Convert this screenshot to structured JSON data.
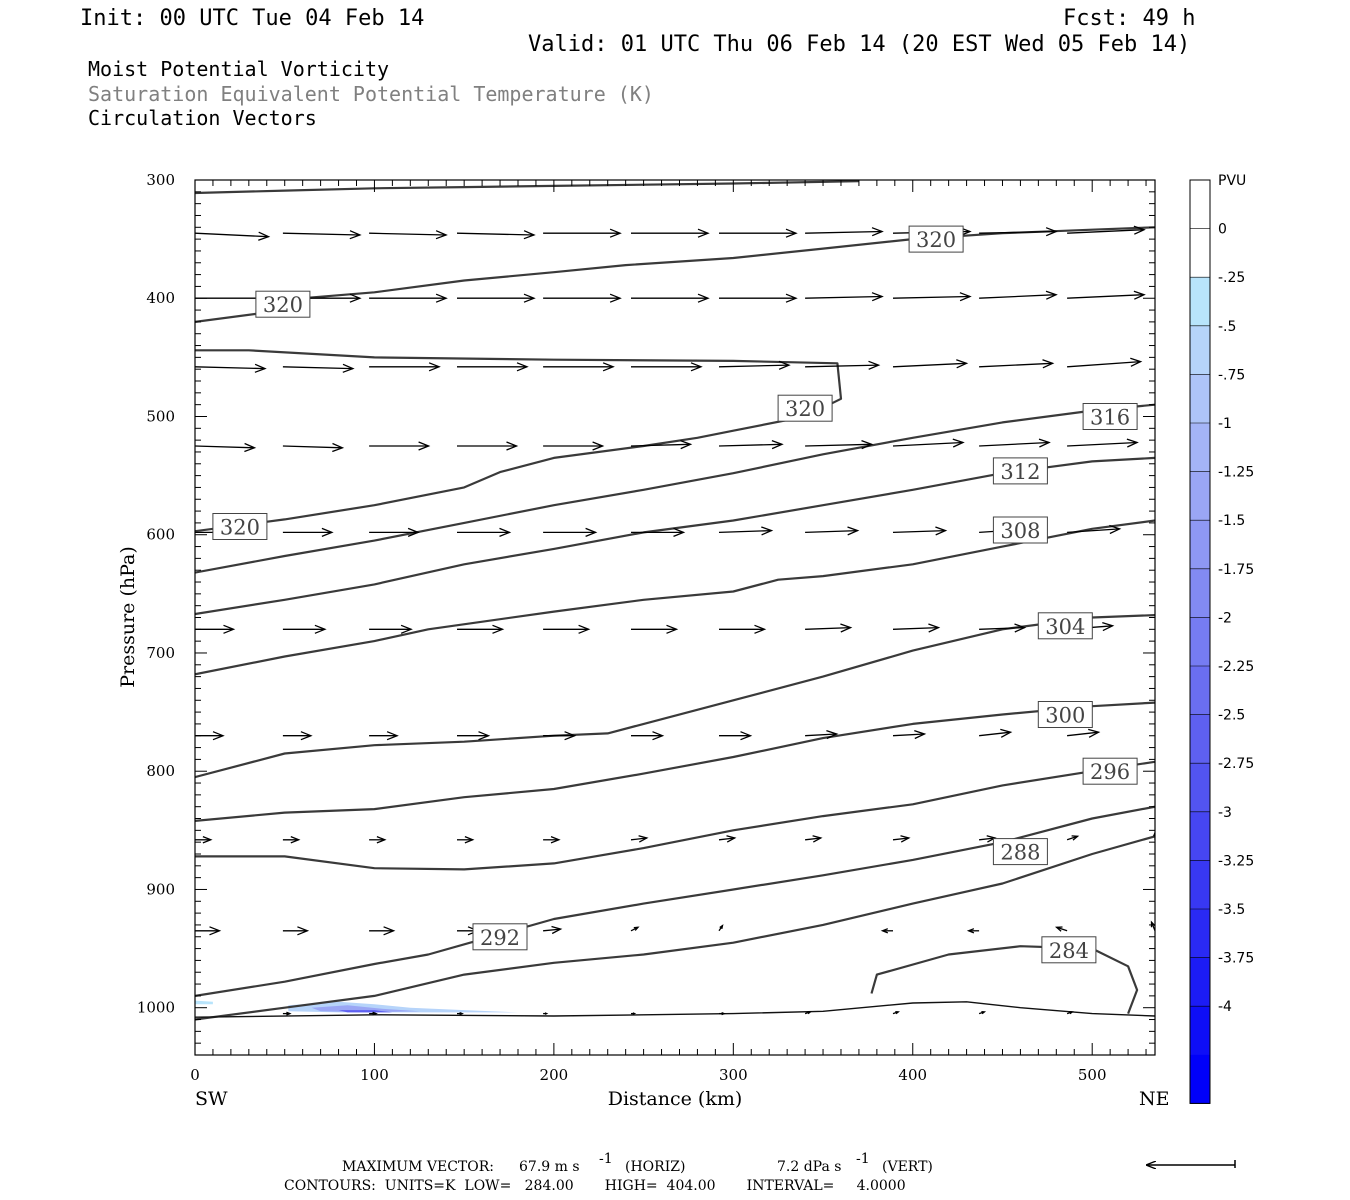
{
  "header": {
    "init": "Init: 00 UTC Tue 04 Feb 14",
    "fcst": "Fcst:   49 h",
    "valid": "Valid: 01 UTC Thu 06 Feb 14 (20 EST Wed 05 Feb 14)"
  },
  "fields": [
    {
      "text": "Moist Potential Vorticity",
      "color": "#000000"
    },
    {
      "text": "Saturation Equivalent Potential Temperature (K)",
      "color": "#808080"
    },
    {
      "text": "Circulation Vectors",
      "color": "#000000"
    }
  ],
  "chart_data": {
    "type": "line",
    "xlabel": "Distance (km)",
    "ylabel": "Pressure (hPa)",
    "xlim": [
      0,
      535
    ],
    "ylim": [
      1040,
      300
    ],
    "x_ticks": [
      0,
      100,
      200,
      300,
      400,
      500
    ],
    "y_ticks": [
      300,
      400,
      500,
      600,
      700,
      800,
      900,
      1000
    ],
    "x_end_labels": {
      "left": "SW",
      "right": "NE"
    },
    "isentropes": [
      {
        "name": "284",
        "points": [
          [
            377,
            988
          ],
          [
            380,
            972
          ],
          [
            420,
            955
          ],
          [
            460,
            948
          ],
          [
            500,
            950
          ],
          [
            520,
            965
          ],
          [
            525,
            985
          ],
          [
            520,
            1005
          ]
        ],
        "label_at": [
          487,
          951
        ]
      },
      {
        "name": "288",
        "points": [
          [
            0,
            1010
          ],
          [
            50,
            1000
          ],
          [
            100,
            990
          ],
          [
            150,
            972
          ],
          [
            200,
            962
          ],
          [
            250,
            955
          ],
          [
            300,
            945
          ],
          [
            350,
            930
          ],
          [
            400,
            912
          ],
          [
            450,
            895
          ],
          [
            500,
            870
          ],
          [
            535,
            855
          ]
        ],
        "label_at": [
          460,
          868
        ]
      },
      {
        "name": "292",
        "points": [
          [
            0,
            990
          ],
          [
            50,
            978
          ],
          [
            100,
            963
          ],
          [
            130,
            955
          ],
          [
            200,
            925
          ],
          [
            250,
            912
          ],
          [
            300,
            900
          ],
          [
            350,
            888
          ],
          [
            400,
            875
          ],
          [
            450,
            860
          ],
          [
            500,
            840
          ],
          [
            535,
            830
          ]
        ],
        "label_at": [
          170,
          940
        ]
      },
      {
        "name": "296",
        "points": [
          [
            0,
            872
          ],
          [
            50,
            872
          ],
          [
            100,
            882
          ],
          [
            150,
            883
          ],
          [
            200,
            878
          ],
          [
            250,
            865
          ],
          [
            300,
            850
          ],
          [
            350,
            838
          ],
          [
            400,
            828
          ],
          [
            450,
            812
          ],
          [
            500,
            800
          ],
          [
            535,
            792
          ]
        ],
        "label_at": [
          510,
          800
        ]
      },
      {
        "name": "300",
        "points": [
          [
            0,
            842
          ],
          [
            50,
            835
          ],
          [
            100,
            832
          ],
          [
            150,
            822
          ],
          [
            200,
            815
          ],
          [
            250,
            802
          ],
          [
            300,
            788
          ],
          [
            350,
            772
          ],
          [
            400,
            760
          ],
          [
            450,
            752
          ],
          [
            500,
            745
          ],
          [
            535,
            742
          ]
        ],
        "label_at": [
          485,
          752
        ]
      },
      {
        "name": "304",
        "points": [
          [
            0,
            805
          ],
          [
            50,
            785
          ],
          [
            100,
            778
          ],
          [
            150,
            775
          ],
          [
            200,
            770
          ],
          [
            230,
            768
          ],
          [
            300,
            740
          ],
          [
            350,
            720
          ],
          [
            400,
            698
          ],
          [
            450,
            680
          ],
          [
            500,
            670
          ],
          [
            535,
            668
          ]
        ],
        "label_at": [
          485,
          677
        ]
      },
      {
        "name": "308",
        "points": [
          [
            0,
            718
          ],
          [
            50,
            703
          ],
          [
            100,
            690
          ],
          [
            130,
            680
          ],
          [
            200,
            665
          ],
          [
            250,
            655
          ],
          [
            300,
            648
          ],
          [
            325,
            638
          ],
          [
            350,
            635
          ],
          [
            400,
            625
          ],
          [
            450,
            610
          ],
          [
            500,
            595
          ],
          [
            535,
            588
          ]
        ],
        "label_at": [
          460,
          596
        ]
      },
      {
        "name": "312",
        "points": [
          [
            0,
            667
          ],
          [
            50,
            655
          ],
          [
            100,
            642
          ],
          [
            150,
            625
          ],
          [
            200,
            612
          ],
          [
            250,
            598
          ],
          [
            300,
            588
          ],
          [
            350,
            575
          ],
          [
            400,
            562
          ],
          [
            450,
            548
          ],
          [
            500,
            538
          ],
          [
            535,
            535
          ]
        ],
        "label_at": [
          460,
          546
        ]
      },
      {
        "name": "316",
        "points": [
          [
            0,
            632
          ],
          [
            50,
            618
          ],
          [
            100,
            605
          ],
          [
            150,
            590
          ],
          [
            200,
            575
          ],
          [
            250,
            562
          ],
          [
            300,
            548
          ],
          [
            350,
            532
          ],
          [
            400,
            518
          ],
          [
            450,
            505
          ],
          [
            500,
            495
          ],
          [
            535,
            490
          ]
        ],
        "label_at": [
          510,
          500
        ]
      },
      {
        "name": "320 (low)",
        "points": [
          [
            0,
            597
          ],
          [
            50,
            587
          ],
          [
            100,
            575
          ],
          [
            150,
            560
          ],
          [
            170,
            547
          ],
          [
            200,
            535
          ],
          [
            250,
            525
          ],
          [
            280,
            518
          ],
          [
            300,
            512
          ],
          [
            340,
            500
          ],
          [
            360,
            485
          ],
          [
            358,
            455
          ],
          [
            300,
            453
          ],
          [
            200,
            452
          ],
          [
            100,
            450
          ],
          [
            30,
            444
          ],
          [
            0,
            444
          ]
        ],
        "label_at": [
          340,
          493
        ]
      },
      {
        "name": "320 (mid)",
        "points": [
          [
            0,
            420
          ],
          [
            35,
            413
          ],
          [
            60,
            400
          ],
          [
            100,
            395
          ],
          [
            150,
            385
          ],
          [
            200,
            378
          ],
          [
            240,
            372
          ],
          [
            300,
            366
          ],
          [
            350,
            358
          ],
          [
            400,
            350
          ],
          [
            450,
            345
          ],
          [
            500,
            342
          ],
          [
            535,
            340
          ]
        ],
        "label_at": [
          49,
          405
        ]
      },
      {
        "name": "320 (top)",
        "points": [
          [
            0,
            311
          ],
          [
            50,
            309
          ],
          [
            100,
            307
          ],
          [
            150,
            306
          ],
          [
            200,
            305
          ],
          [
            300,
            303
          ],
          [
            370,
            301
          ]
        ],
        "label_at": [
          413,
          350
        ]
      }
    ],
    "isentrope_extra_labels": [
      {
        "text": "320",
        "label_at": [
          25,
          593
        ]
      }
    ],
    "pv_shading": [
      {
        "points": [
          [
            52,
            998
          ],
          [
            80,
            995
          ],
          [
            100,
            997
          ],
          [
            120,
            1000
          ],
          [
            150,
            1002
          ],
          [
            180,
            1004
          ],
          [
            120,
            1004
          ],
          [
            80,
            1004
          ],
          [
            52,
            1003
          ]
        ],
        "value": -0.5
      },
      {
        "points": [
          [
            65,
            1000
          ],
          [
            85,
            998
          ],
          [
            105,
            1001
          ],
          [
            125,
            1003
          ],
          [
            95,
            1004
          ],
          [
            70,
            1003
          ]
        ],
        "value": -1.25
      },
      {
        "points": [
          [
            80,
            1002
          ],
          [
            100,
            1002
          ],
          [
            110,
            1004
          ],
          [
            85,
            1004
          ]
        ],
        "value": -2.5
      },
      {
        "points": [
          [
            0,
            994
          ],
          [
            10,
            995
          ],
          [
            10,
            997
          ],
          [
            0,
            997
          ]
        ],
        "value": -0.25
      }
    ],
    "surface": [
      [
        0,
        1008
      ],
      [
        100,
        1006
      ],
      [
        200,
        1007
      ],
      [
        300,
        1005
      ],
      [
        350,
        1003
      ],
      [
        400,
        996
      ],
      [
        430,
        995
      ],
      [
        460,
        1000
      ],
      [
        500,
        1005
      ],
      [
        535,
        1007
      ]
    ],
    "vectors": {
      "x": [
        0,
        49,
        97,
        146,
        194,
        243,
        292,
        340,
        389,
        437,
        486,
        535
      ],
      "levels": [
        {
          "p": 345,
          "u": [
            42,
            44,
            44,
            44,
            44,
            44,
            44,
            44,
            44,
            44,
            44,
            44
          ],
          "w": [
            -2,
            -1,
            -1,
            -1,
            0,
            0,
            0,
            1,
            1,
            1,
            2,
            2
          ]
        },
        {
          "p": 400,
          "u": [
            42,
            44,
            44,
            44,
            44,
            44,
            44,
            44,
            44,
            44,
            44,
            44
          ],
          "w": [
            0,
            0,
            0,
            0,
            0,
            0,
            0,
            1,
            1,
            2,
            2,
            2
          ]
        },
        {
          "p": 458,
          "u": [
            40,
            40,
            40,
            40,
            40,
            40,
            40,
            42,
            42,
            42,
            42,
            42
          ],
          "w": [
            -1,
            -1,
            0,
            0,
            0,
            0,
            1,
            1,
            2,
            2,
            3,
            3
          ]
        },
        {
          "p": 525,
          "u": [
            34,
            34,
            34,
            34,
            34,
            34,
            36,
            38,
            40,
            40,
            40,
            40
          ],
          "w": [
            -1,
            -1,
            0,
            0,
            0,
            1,
            1,
            1,
            2,
            2,
            2,
            3
          ]
        },
        {
          "p": 598,
          "u": [
            28,
            28,
            28,
            30,
            30,
            30,
            30,
            30,
            30,
            30,
            30,
            30
          ],
          "w": [
            0,
            0,
            0,
            0,
            0,
            0,
            1,
            1,
            1,
            2,
            2,
            2
          ]
        },
        {
          "p": 680,
          "u": [
            22,
            24,
            24,
            26,
            26,
            26,
            26,
            26,
            26,
            26,
            26,
            26
          ],
          "w": [
            0,
            0,
            0,
            0,
            0,
            0,
            0,
            1,
            1,
            1,
            2,
            2
          ]
        },
        {
          "p": 770,
          "u": [
            16,
            16,
            16,
            18,
            18,
            18,
            18,
            18,
            18,
            18,
            18,
            18
          ],
          "w": [
            0,
            0,
            0,
            0,
            0,
            0,
            0,
            1,
            1,
            2,
            2,
            2
          ]
        },
        {
          "p": 858,
          "u": [
            9,
            9,
            9,
            9,
            9,
            9,
            9,
            9,
            9,
            9,
            6,
            0
          ],
          "w": [
            0,
            0,
            0,
            0,
            0,
            1,
            1,
            1,
            1,
            1,
            2,
            4
          ]
        },
        {
          "p": 935,
          "u": [
            14,
            14,
            14,
            12,
            10,
            4,
            2,
            0,
            -6,
            -6,
            -6,
            -2
          ],
          "w": [
            0,
            0,
            0,
            0,
            1,
            2,
            3,
            0,
            0,
            0,
            2,
            5
          ]
        },
        {
          "p": 1005,
          "u": [
            0,
            4,
            4,
            3,
            2,
            2,
            3,
            3,
            3,
            3,
            3,
            0
          ],
          "w": [
            0,
            0,
            0,
            0,
            0,
            0,
            0,
            1,
            1,
            1,
            1,
            0
          ]
        }
      ]
    },
    "colorbar": {
      "unit": "PVU",
      "levels": [
        "0",
        "-.25",
        "-.5",
        "-.75",
        "-1",
        "-1.25",
        "-1.5",
        "-1.75",
        "-2",
        "-2.25",
        "-2.5",
        "-2.75",
        "-3",
        "-3.25",
        "-3.5",
        "-3.75",
        "-4"
      ],
      "colors": [
        "#ffffff",
        "#ffffff",
        "#b8e4fb",
        "#b6d4fa",
        "#aec4f8",
        "#a4b4f7",
        "#9aa6f5",
        "#8e98f4",
        "#828af3",
        "#767cf2",
        "#6a6ef1",
        "#5e60f1",
        "#5254f1",
        "#4646f2",
        "#3838f3",
        "#2a2af4",
        "#1c1cf5",
        "#0e0ef7",
        "#0000f9"
      ]
    }
  },
  "footer": {
    "max_vector_label": "MAXIMUM VECTOR:",
    "max_vector_horiz": "67.9 m s",
    "max_vector_horiz_unit": "(HORIZ)",
    "max_vector_vert": "7.2 dPa s",
    "max_vector_vert_unit": "(VERT)",
    "exponent": "-1",
    "contours": "CONTOURS:  UNITS=K  LOW=   284.00       HIGH=  404.00       INTERVAL=     4.0000"
  }
}
